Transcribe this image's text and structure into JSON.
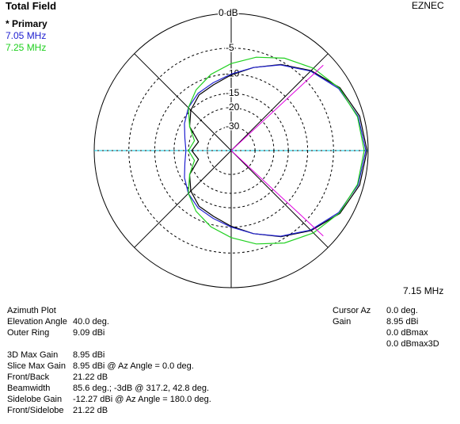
{
  "title": "Total Field",
  "brand": "EZNEC",
  "frequency": "7.15 MHz",
  "chart_data": {
    "type": "polar",
    "scale": "arrl-log",
    "rticks": [
      {
        "value": 0,
        "label": "0 dB"
      },
      -5,
      -10,
      -15,
      -20,
      -30
    ],
    "angles": [
      0,
      15,
      30,
      45,
      60,
      75,
      90,
      105,
      120,
      135,
      150,
      165,
      180,
      195,
      210,
      225,
      240,
      255,
      270,
      285,
      300,
      315,
      330,
      345
    ],
    "series": [
      {
        "name": "* Primary",
        "color": "#000000",
        "values": [
          -0.14,
          -0.5,
          -1.5,
          -3.3,
          -5.5,
          -8,
          -10.2,
          -12,
          -13,
          -15,
          -18,
          -24,
          -21.36,
          -24,
          -18,
          -15,
          -13,
          -12,
          -10.2,
          -8,
          -5.5,
          -3.3,
          -1.5,
          -0.5
        ]
      },
      {
        "name": "7.05 MHz",
        "color": "#2020d0",
        "values": [
          -0.3,
          -0.7,
          -1.7,
          -3.4,
          -5.6,
          -8,
          -10,
          -11.5,
          -12.5,
          -14,
          -16,
          -18,
          -19,
          -18,
          -16,
          -14,
          -12.5,
          -11.5,
          -10,
          -8,
          -5.6,
          -3.4,
          -1.7,
          -0.7
        ]
      },
      {
        "name": "7.25 MHz",
        "color": "#20d020",
        "values": [
          -0.5,
          -0.8,
          -1.6,
          -2.8,
          -4.3,
          -6,
          -7.8,
          -9.5,
          -11.5,
          -14,
          -18,
          -22,
          -20,
          -22,
          -18,
          -14,
          -11.5,
          -9.5,
          -7.8,
          -6,
          -4.3,
          -2.8,
          -1.6,
          -0.8
        ]
      }
    ],
    "cursor_angle": 0,
    "beamwidth_angles": [
      317.2,
      42.8
    ]
  },
  "info": {
    "left": [
      [
        "Azimuth Plot",
        ""
      ],
      [
        "Elevation Angle",
        "40.0 deg."
      ],
      [
        "Outer Ring",
        "9.09 dBi"
      ],
      [
        "3D Max Gain",
        "8.95 dBi"
      ],
      [
        "Slice Max Gain",
        "8.95 dBi @ Az Angle = 0.0 deg."
      ],
      [
        "Front/Back",
        "21.22 dB"
      ],
      [
        "Beamwidth",
        "85.6 deg.; -3dB @ 317.2, 42.8 deg."
      ],
      [
        "Sidelobe Gain",
        "-12.27 dBi @ Az Angle = 180.0 deg."
      ],
      [
        "Front/Sidelobe",
        "21.22 dB"
      ]
    ],
    "right": [
      [
        "Cursor Az",
        "0.0 deg."
      ],
      [
        "Gain",
        "8.95 dBi"
      ],
      [
        "",
        "0.0 dBmax"
      ],
      [
        "",
        "0.0 dBmax3D"
      ]
    ]
  }
}
